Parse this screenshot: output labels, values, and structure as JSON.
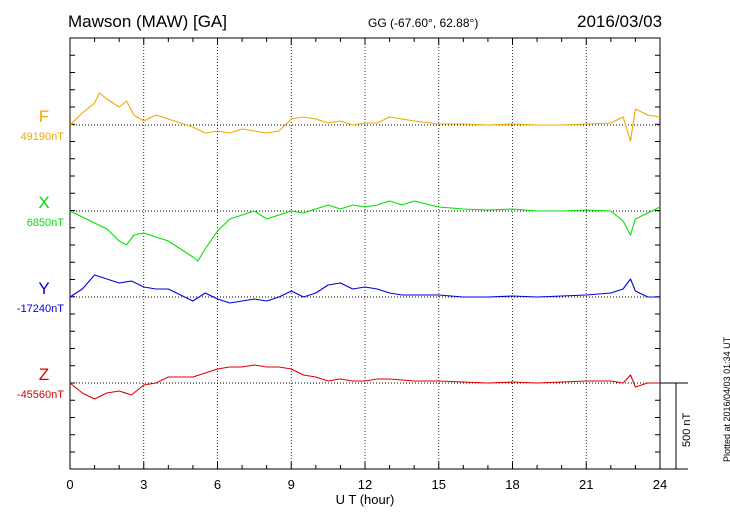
{
  "header": {
    "station": "Mawson (MAW)  [GA]",
    "coords": "GG (-67.60°,  62.88°)",
    "date": "2016/03/03"
  },
  "plotted_note": "Plotted at 2016/04/03 01:34 UT",
  "scale_bar_label": "500 nT",
  "colors": {
    "F": "#f0a800",
    "X": "#00e000",
    "Y": "#0000e0",
    "Z": "#e00000"
  },
  "chart_data": {
    "type": "line",
    "xlabel": "U T (hour)",
    "xlim": [
      0,
      24
    ],
    "x_ticks": [
      "0",
      "3",
      "6",
      "9",
      "12",
      "15",
      "18",
      "21",
      "24"
    ],
    "grid": true,
    "scale_bar_nT": 500,
    "series": [
      {
        "name": "F",
        "baseline_label": "49190nT",
        "baseline_nT": 49190,
        "x": [
          0,
          0.5,
          1,
          1.2,
          1.5,
          2,
          2.3,
          2.6,
          3,
          3.5,
          4,
          4.5,
          5,
          5.5,
          6,
          6.5,
          7,
          7.5,
          8,
          8.5,
          9,
          9.5,
          10,
          10.5,
          11,
          11.5,
          12,
          12.5,
          13,
          13.5,
          14,
          15,
          16,
          17,
          18,
          19,
          20,
          21,
          22,
          22.5,
          22.8,
          23,
          23.5,
          24
        ],
        "values": [
          49190,
          49250,
          49300,
          49350,
          49320,
          49280,
          49310,
          49240,
          49210,
          49240,
          49220,
          49200,
          49180,
          49150,
          49160,
          49150,
          49170,
          49160,
          49150,
          49160,
          49220,
          49230,
          49220,
          49200,
          49210,
          49190,
          49200,
          49200,
          49230,
          49220,
          49210,
          49195,
          49195,
          49190,
          49195,
          49190,
          49190,
          49195,
          49200,
          49230,
          49110,
          49270,
          49240,
          49230
        ]
      },
      {
        "name": "X",
        "baseline_label": "6850nT",
        "baseline_nT": 6850,
        "x": [
          0,
          0.5,
          1,
          1.5,
          2,
          2.3,
          2.6,
          3,
          3.5,
          4,
          4.5,
          5,
          5.2,
          5.5,
          6,
          6.5,
          7,
          7.5,
          8,
          8.5,
          9,
          9.5,
          10,
          10.5,
          11,
          11.5,
          12,
          12.5,
          13,
          13.5,
          14,
          15,
          16,
          17,
          18,
          19,
          20,
          21,
          22,
          22.5,
          22.8,
          23,
          23.5,
          24
        ],
        "values": [
          6850,
          6820,
          6790,
          6760,
          6700,
          6680,
          6730,
          6740,
          6720,
          6700,
          6660,
          6620,
          6600,
          6660,
          6750,
          6810,
          6830,
          6850,
          6810,
          6830,
          6850,
          6840,
          6860,
          6880,
          6860,
          6880,
          6870,
          6880,
          6900,
          6880,
          6900,
          6870,
          6860,
          6855,
          6860,
          6850,
          6850,
          6855,
          6850,
          6800,
          6730,
          6810,
          6840,
          6870
        ]
      },
      {
        "name": "Y",
        "baseline_label": "-17240nT",
        "baseline_nT": -17240,
        "x": [
          0,
          0.5,
          1,
          1.5,
          2,
          2.5,
          3,
          3.5,
          4,
          4.5,
          5,
          5.5,
          6,
          6.5,
          7,
          7.5,
          8,
          8.5,
          9,
          9.5,
          10,
          10.5,
          11,
          11.5,
          12,
          12.5,
          13,
          13.5,
          14,
          15,
          16,
          17,
          18,
          19,
          20,
          21,
          22,
          22.5,
          22.8,
          23,
          23.5,
          24
        ],
        "values": [
          -17240,
          -17200,
          -17130,
          -17150,
          -17170,
          -17160,
          -17190,
          -17200,
          -17200,
          -17230,
          -17260,
          -17220,
          -17250,
          -17270,
          -17260,
          -17250,
          -17260,
          -17240,
          -17210,
          -17240,
          -17220,
          -17180,
          -17170,
          -17200,
          -17190,
          -17200,
          -17220,
          -17230,
          -17230,
          -17230,
          -17240,
          -17240,
          -17235,
          -17240,
          -17235,
          -17230,
          -17220,
          -17200,
          -17150,
          -17210,
          -17240,
          -17240
        ]
      },
      {
        "name": "Z",
        "baseline_label": "-45560nT",
        "baseline_nT": -45560,
        "x": [
          0,
          0.5,
          1,
          1.5,
          2,
          2.5,
          3,
          3.5,
          4,
          4.5,
          5,
          5.5,
          6,
          6.5,
          7,
          7.5,
          8,
          8.5,
          9,
          9.5,
          10,
          10.5,
          11,
          11.5,
          12,
          12.5,
          13,
          13.5,
          14,
          15,
          16,
          17,
          18,
          19,
          20,
          21,
          22,
          22.5,
          22.8,
          23,
          23.5,
          24
        ],
        "values": [
          -45560,
          -45610,
          -45640,
          -45610,
          -45600,
          -45620,
          -45570,
          -45560,
          -45530,
          -45530,
          -45530,
          -45510,
          -45490,
          -45480,
          -45480,
          -45470,
          -45480,
          -45480,
          -45490,
          -45520,
          -45530,
          -45550,
          -45540,
          -45550,
          -45550,
          -45540,
          -45540,
          -45545,
          -45550,
          -45550,
          -45555,
          -45560,
          -45555,
          -45560,
          -45555,
          -45550,
          -45550,
          -45560,
          -45520,
          -45580,
          -45560,
          -45560
        ]
      }
    ]
  }
}
